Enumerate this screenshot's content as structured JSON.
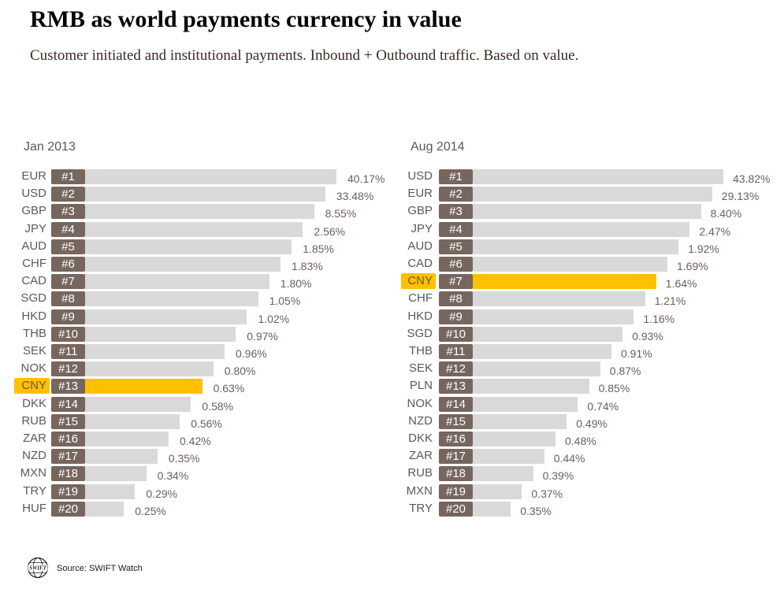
{
  "header": {
    "title": "RMB as world payments currency in value",
    "subtitle": "Customer initiated and institutional payments. Inbound + Outbound traffic. Based on value."
  },
  "colors": {
    "bar": "#d9d9d9",
    "rank_box": "#76665e",
    "highlight": "#ffc000"
  },
  "chart_data": [
    {
      "type": "bar",
      "orientation": "horizontal",
      "title": "Jan 2013",
      "highlight": "CNY",
      "categories": [
        "EUR",
        "USD",
        "GBP",
        "JPY",
        "AUD",
        "CHF",
        "CAD",
        "SGD",
        "HKD",
        "THB",
        "SEK",
        "NOK",
        "CNY",
        "DKK",
        "RUB",
        "ZAR",
        "NZD",
        "MXN",
        "TRY",
        "HUF"
      ],
      "ranks": [
        "#1",
        "#2",
        "#3",
        "#4",
        "#5",
        "#6",
        "#7",
        "#8",
        "#9",
        "#10",
        "#11",
        "#12",
        "#13",
        "#14",
        "#15",
        "#16",
        "#17",
        "#18",
        "#19",
        "#20"
      ],
      "values": [
        40.17,
        33.48,
        8.55,
        2.56,
        1.85,
        1.83,
        1.8,
        1.05,
        1.02,
        0.97,
        0.96,
        0.8,
        0.63,
        0.58,
        0.56,
        0.42,
        0.35,
        0.34,
        0.29,
        0.25
      ],
      "labels": [
        "40.17%",
        "33.48%",
        "8.55%",
        "2.56%",
        "1.85%",
        "1.83%",
        "1.80%",
        "1.05%",
        "1.02%",
        "0.97%",
        "0.96%",
        "0.80%",
        "0.63%",
        "0.58%",
        "0.56%",
        "0.42%",
        "0.35%",
        "0.34%",
        "0.29%",
        "0.25%"
      ],
      "unit": "%"
    },
    {
      "type": "bar",
      "orientation": "horizontal",
      "title": "Aug 2014",
      "highlight": "CNY",
      "categories": [
        "USD",
        "EUR",
        "GBP",
        "JPY",
        "AUD",
        "CAD",
        "CNY",
        "CHF",
        "HKD",
        "SGD",
        "THB",
        "SEK",
        "PLN",
        "NOK",
        "NZD",
        "DKK",
        "ZAR",
        "RUB",
        "MXN",
        "TRY"
      ],
      "ranks": [
        "#1",
        "#2",
        "#3",
        "#4",
        "#5",
        "#6",
        "#7",
        "#8",
        "#9",
        "#10",
        "#11",
        "#12",
        "#13",
        "#14",
        "#15",
        "#16",
        "#17",
        "#18",
        "#19",
        "#20"
      ],
      "values": [
        43.82,
        29.13,
        8.4,
        2.47,
        1.92,
        1.69,
        1.64,
        1.21,
        1.16,
        0.93,
        0.91,
        0.87,
        0.85,
        0.74,
        0.49,
        0.48,
        0.44,
        0.39,
        0.37,
        0.35
      ],
      "labels": [
        "43.82%",
        "29.13%",
        "8.40%",
        "2.47%",
        "1.92%",
        "1.69%",
        "1.64%",
        "1.21%",
        "1.16%",
        "0.93%",
        "0.91%",
        "0.87%",
        "0.85%",
        "0.74%",
        "0.49%",
        "0.48%",
        "0.44%",
        "0.39%",
        "0.37%",
        "0.35%"
      ],
      "unit": "%"
    }
  ],
  "footer": {
    "logo_icon": "swift-globe-icon",
    "logo_text": "SWIFT",
    "source": "Source: SWIFT Watch"
  }
}
